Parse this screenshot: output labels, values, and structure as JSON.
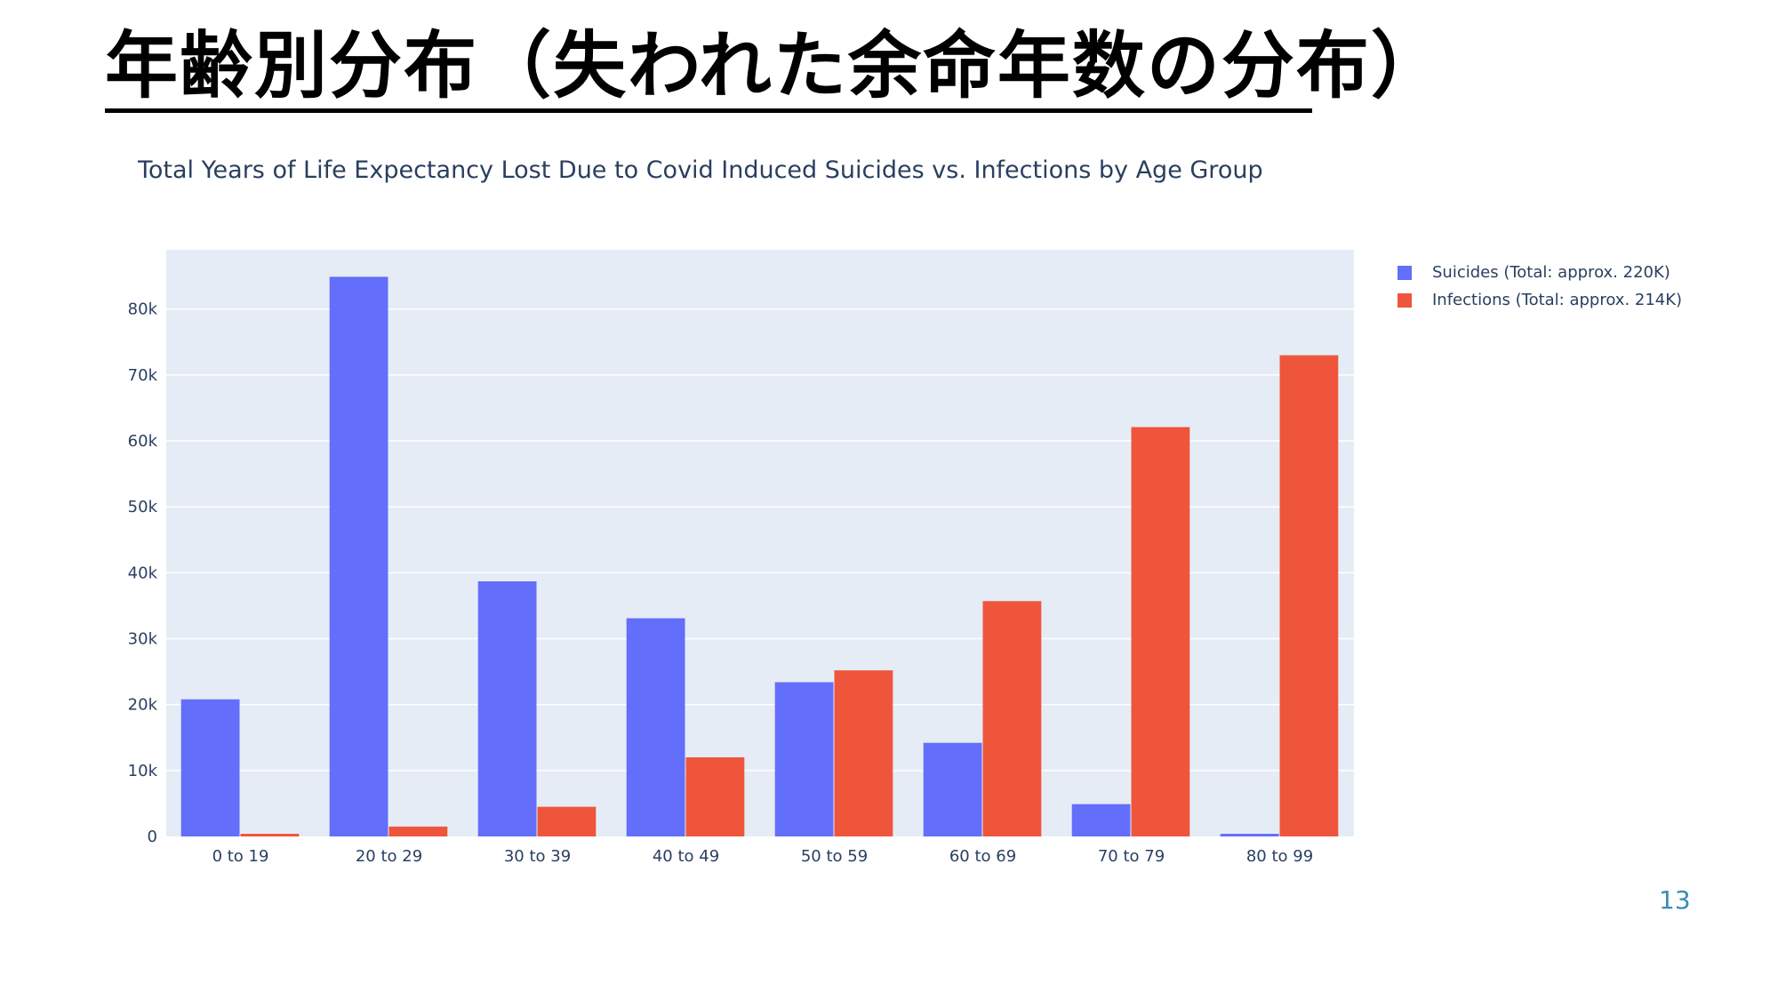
{
  "slide": {
    "title": "年齢別分布（失われた余命年数の分布）",
    "page_number": "13"
  },
  "chart_data": {
    "type": "bar",
    "title": "Total Years of Life Expectancy Lost Due to Covid Induced Suicides vs. Infections by Age Group",
    "xlabel": "",
    "ylabel": "",
    "categories": [
      "0 to 19",
      "20 to 29",
      "30 to 39",
      "40 to 49",
      "50 to 59",
      "60 to 69",
      "70 to 79",
      "80 to 99"
    ],
    "series": [
      {
        "name": "Suicides (Total: approx. 220K)",
        "color": "#636efa",
        "values": [
          20800,
          84900,
          38700,
          33100,
          23400,
          14200,
          4900,
          400
        ]
      },
      {
        "name": "Infections (Total: approx. 214K)",
        "color": "#ef553b",
        "values": [
          400,
          1500,
          4500,
          12000,
          25200,
          35700,
          62100,
          73000
        ]
      }
    ],
    "ylim": [
      0,
      89000
    ],
    "yticks": [
      0,
      10000,
      20000,
      30000,
      40000,
      50000,
      60000,
      70000,
      80000
    ],
    "ytick_labels": [
      "0",
      "10k",
      "20k",
      "30k",
      "40k",
      "50k",
      "60k",
      "70k",
      "80k"
    ],
    "grid": true,
    "legend_position": "top-right",
    "plot_background": "#e5ecf6"
  }
}
